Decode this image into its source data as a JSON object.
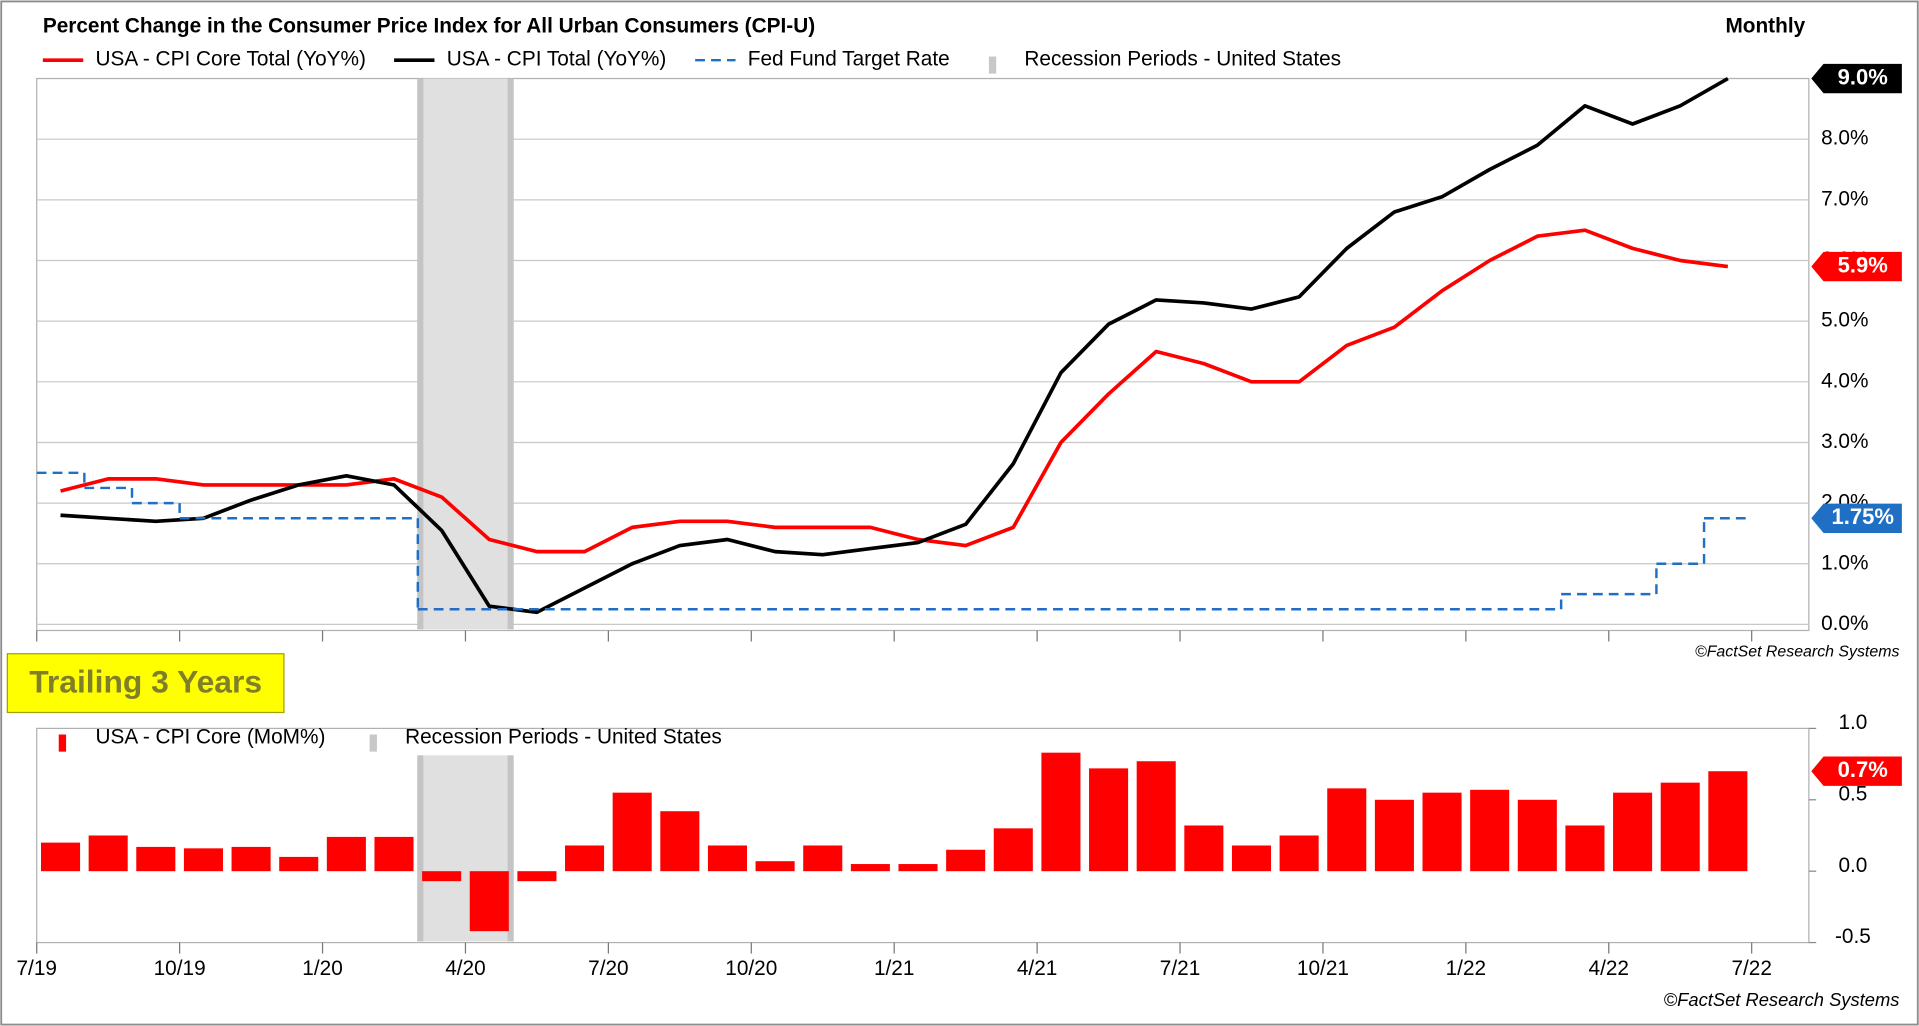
{
  "chart_data": [
    {
      "type": "line",
      "title": "Percent Change in the Consumer Price Index for All Urban Consumers (CPI-U)",
      "frequency": "Monthly",
      "source": "©FactSet Research Systems",
      "x": [
        0.5,
        1.5,
        2.5,
        3.5,
        4.5,
        5.5,
        6.5,
        7.5,
        8.5,
        9.5,
        10.5,
        11.5,
        12.5,
        13.5,
        14.5,
        15.5,
        16.5,
        17.5,
        18.5,
        19.5,
        20.5,
        21.5,
        22.5,
        23.5,
        24.5,
        25.5,
        26.5,
        27.5,
        28.5,
        29.5,
        30.5,
        31.5,
        32.5,
        33.5,
        34.5,
        35.5
      ],
      "xlim": [
        0,
        37.2
      ],
      "xticks": [
        0,
        3,
        6,
        9,
        12,
        15,
        18,
        21,
        24,
        27,
        30,
        33,
        36
      ],
      "ylim": [
        -0.1,
        9.0
      ],
      "yticks": [
        {
          "value": 0,
          "label": "0.0%"
        },
        {
          "value": 1,
          "label": "1.0%"
        },
        {
          "value": 2,
          "label": "2.0%"
        },
        {
          "value": 3,
          "label": "3.0%"
        },
        {
          "value": 4,
          "label": "4.0%"
        },
        {
          "value": 5,
          "label": "5.0%"
        },
        {
          "value": 6,
          "label": "6.0%"
        },
        {
          "value": 7,
          "label": "7.0%"
        },
        {
          "value": 8,
          "label": "8.0%"
        }
      ],
      "grid": true,
      "series": [
        {
          "name": "USA - CPI Core Total (YoY%)",
          "color": "#ff0000",
          "style": "line",
          "values": [
            2.2,
            2.4,
            2.4,
            2.3,
            2.3,
            2.3,
            2.3,
            2.4,
            2.1,
            1.4,
            1.2,
            1.2,
            1.6,
            1.7,
            1.7,
            1.6,
            1.6,
            1.6,
            1.4,
            1.3,
            1.6,
            3.0,
            3.8,
            4.5,
            4.3,
            4.0,
            4.0,
            4.6,
            4.9,
            5.5,
            6.0,
            6.4,
            6.5,
            6.2,
            6.0,
            5.9
          ],
          "value_labels": [
            null,
            null,
            null,
            null,
            null,
            null,
            null,
            null,
            null,
            null,
            null,
            null,
            null,
            null,
            null,
            null,
            null,
            null,
            null,
            null,
            null,
            null,
            null,
            null,
            null,
            null,
            null,
            null,
            null,
            null,
            null,
            null,
            null,
            null,
            null,
            "5.9%"
          ]
        },
        {
          "name": "USA - CPI Total (YoY%)",
          "color": "#000000",
          "style": "line",
          "values": [
            1.8,
            1.75,
            1.7,
            1.75,
            2.05,
            2.3,
            2.45,
            2.3,
            1.55,
            0.3,
            0.2,
            0.6,
            1.0,
            1.3,
            1.4,
            1.2,
            1.15,
            1.25,
            1.35,
            1.65,
            2.65,
            4.15,
            4.95,
            5.35,
            5.3,
            5.2,
            5.4,
            6.2,
            6.8,
            7.05,
            7.5,
            7.9,
            8.55,
            8.25,
            8.55,
            9.0
          ],
          "value_labels": [
            null,
            null,
            null,
            null,
            null,
            null,
            null,
            null,
            null,
            null,
            null,
            null,
            null,
            null,
            null,
            null,
            null,
            null,
            null,
            null,
            null,
            null,
            null,
            null,
            null,
            null,
            null,
            null,
            null,
            null,
            null,
            null,
            null,
            null,
            null,
            "9.0%"
          ]
        },
        {
          "name": "Fed Fund Target Rate",
          "color": "#1f6fc5",
          "style": "dashed-step",
          "values": [
            2.5,
            2.25,
            2.0,
            1.75,
            1.75,
            1.75,
            1.75,
            1.75,
            0.25,
            0.25,
            0.25,
            0.25,
            0.25,
            0.25,
            0.25,
            0.25,
            0.25,
            0.25,
            0.25,
            0.25,
            0.25,
            0.25,
            0.25,
            0.25,
            0.25,
            0.25,
            0.25,
            0.25,
            0.25,
            0.25,
            0.25,
            0.25,
            0.5,
            0.5,
            1.0,
            1.75
          ],
          "value_labels": [
            null,
            null,
            null,
            null,
            null,
            null,
            null,
            null,
            null,
            null,
            null,
            null,
            null,
            null,
            null,
            null,
            null,
            null,
            null,
            null,
            null,
            null,
            null,
            null,
            null,
            null,
            null,
            null,
            null,
            null,
            null,
            null,
            null,
            null,
            null,
            "1.75%"
          ]
        }
      ],
      "recession": {
        "name": "Recession Periods - United States",
        "color": "#e0e0e0",
        "x": [
          8,
          10
        ]
      }
    },
    {
      "type": "bar",
      "annotation": "Trailing 3 Years",
      "source": "©FactSet Research Systems",
      "x": [
        0.5,
        1.5,
        2.5,
        3.5,
        4.5,
        5.5,
        6.5,
        7.5,
        8.5,
        9.5,
        10.5,
        11.5,
        12.5,
        13.5,
        14.5,
        15.5,
        16.5,
        17.5,
        18.5,
        19.5,
        20.5,
        21.5,
        22.5,
        23.5,
        24.5,
        25.5,
        26.5,
        27.5,
        28.5,
        29.5,
        30.5,
        31.5,
        32.5,
        33.5,
        34.5,
        35.5
      ],
      "xlim": [
        0,
        37.2
      ],
      "xticks": [
        {
          "value": 0,
          "label": "7/19"
        },
        {
          "value": 3,
          "label": "10/19"
        },
        {
          "value": 6,
          "label": "1/20"
        },
        {
          "value": 9,
          "label": "4/20"
        },
        {
          "value": 12,
          "label": "7/20"
        },
        {
          "value": 15,
          "label": "10/20"
        },
        {
          "value": 18,
          "label": "1/21"
        },
        {
          "value": 21,
          "label": "4/21"
        },
        {
          "value": 24,
          "label": "7/21"
        },
        {
          "value": 27,
          "label": "10/21"
        },
        {
          "value": 30,
          "label": "1/22"
        },
        {
          "value": 33,
          "label": "4/22"
        },
        {
          "value": 36,
          "label": "7/22"
        }
      ],
      "ylim": [
        -0.5,
        1.0
      ],
      "yticks": [
        {
          "value": -0.5,
          "label": "-0.5"
        },
        {
          "value": 0,
          "label": "0.0"
        },
        {
          "value": 0.5,
          "label": "0.5"
        },
        {
          "value": 1,
          "label": "1.0"
        }
      ],
      "grid": false,
      "series": [
        {
          "name": "USA - CPI Core (MoM%)",
          "color": "#ff0000",
          "style": "bar",
          "values": [
            0.2,
            0.25,
            0.17,
            0.16,
            0.17,
            0.1,
            0.24,
            0.24,
            -0.07,
            -0.42,
            -0.07,
            0.18,
            0.55,
            0.42,
            0.18,
            0.07,
            0.18,
            0.05,
            0.05,
            0.15,
            0.3,
            0.83,
            0.72,
            0.77,
            0.32,
            0.18,
            0.25,
            0.58,
            0.5,
            0.55,
            0.57,
            0.5,
            0.32,
            0.55,
            0.62,
            0.7
          ],
          "value_labels": [
            null,
            null,
            null,
            null,
            null,
            null,
            null,
            null,
            null,
            null,
            null,
            null,
            null,
            null,
            null,
            null,
            null,
            null,
            null,
            null,
            null,
            null,
            null,
            null,
            null,
            null,
            null,
            null,
            null,
            null,
            null,
            null,
            null,
            null,
            null,
            "0.7%"
          ]
        }
      ],
      "recession": {
        "name": "Recession Periods - United States",
        "color": "#e0e0e0",
        "x": [
          8,
          10
        ]
      }
    }
  ]
}
